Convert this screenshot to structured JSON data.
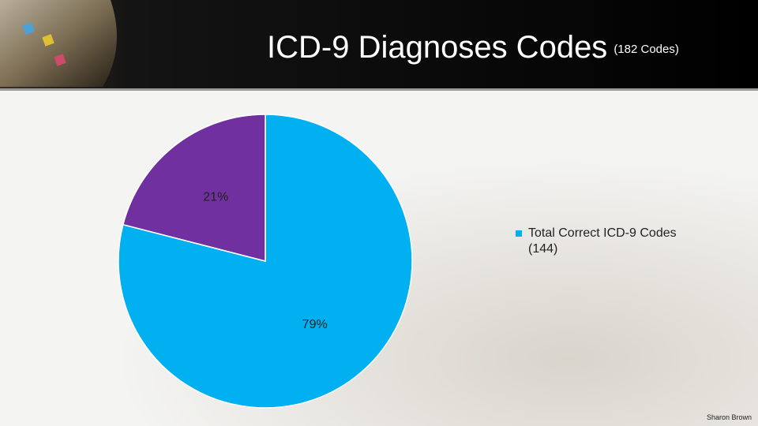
{
  "chart_data": {
    "type": "pie",
    "title": "ICD-9 Diagnoses Codes",
    "subtitle": "(182 Codes)",
    "categories": [
      "Total Correct ICD-9 Codes (144)",
      null
    ],
    "values": [
      79,
      21
    ],
    "value_labels": [
      "79%",
      "21%"
    ],
    "colors": [
      "#00b0f0",
      "#7030a0"
    ],
    "start_angle": 0,
    "direction": "clockwise",
    "legend": "right"
  },
  "footer": "Sharon Brown"
}
